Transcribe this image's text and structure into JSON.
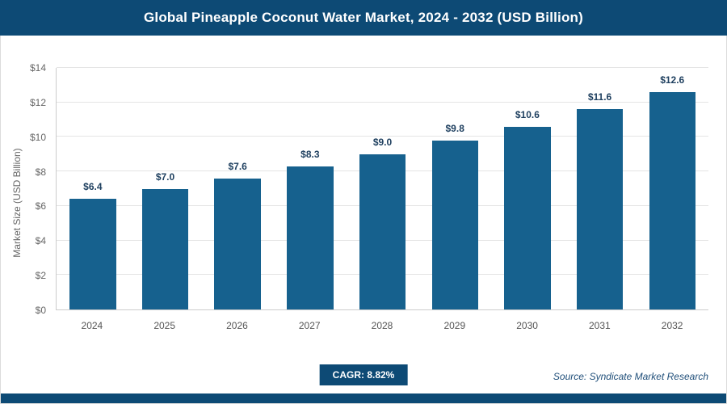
{
  "header": {
    "title": "Global Pineapple Coconut Water Market, 2024 - 2032 (USD Billion)"
  },
  "chart_data": {
    "type": "bar",
    "title": "Global Pineapple Coconut Water Market, 2024 - 2032 (USD Billion)",
    "categories": [
      "2024",
      "2025",
      "2026",
      "2027",
      "2028",
      "2029",
      "2030",
      "2031",
      "2032"
    ],
    "values": [
      6.4,
      7.0,
      7.6,
      8.3,
      9.0,
      9.8,
      10.6,
      11.6,
      12.6
    ],
    "value_labels": [
      "$6.4",
      "$7.0",
      "$7.6",
      "$8.3",
      "$9.0",
      "$9.8",
      "$10.6",
      "$11.6",
      "$12.6"
    ],
    "xlabel": "",
    "ylabel": "Market Size (USD Billion)",
    "ylim": [
      0,
      14
    ],
    "yticks": [
      0,
      2,
      4,
      6,
      8,
      10,
      12,
      14
    ],
    "ytick_labels": [
      "$0",
      "$2",
      "$4",
      "$6",
      "$8",
      "$10",
      "$12",
      "$14"
    ],
    "grid": true,
    "legend_position": "none"
  },
  "footer": {
    "cagr_label": "CAGR: 8.82%",
    "source": "Source: Syndicate Market Research"
  },
  "colors": {
    "header_bg": "#0d4a75",
    "bar": "#16618e",
    "value_label": "#1e3f5f",
    "axis_text": "#666666",
    "gridline": "#e4e4e4"
  }
}
